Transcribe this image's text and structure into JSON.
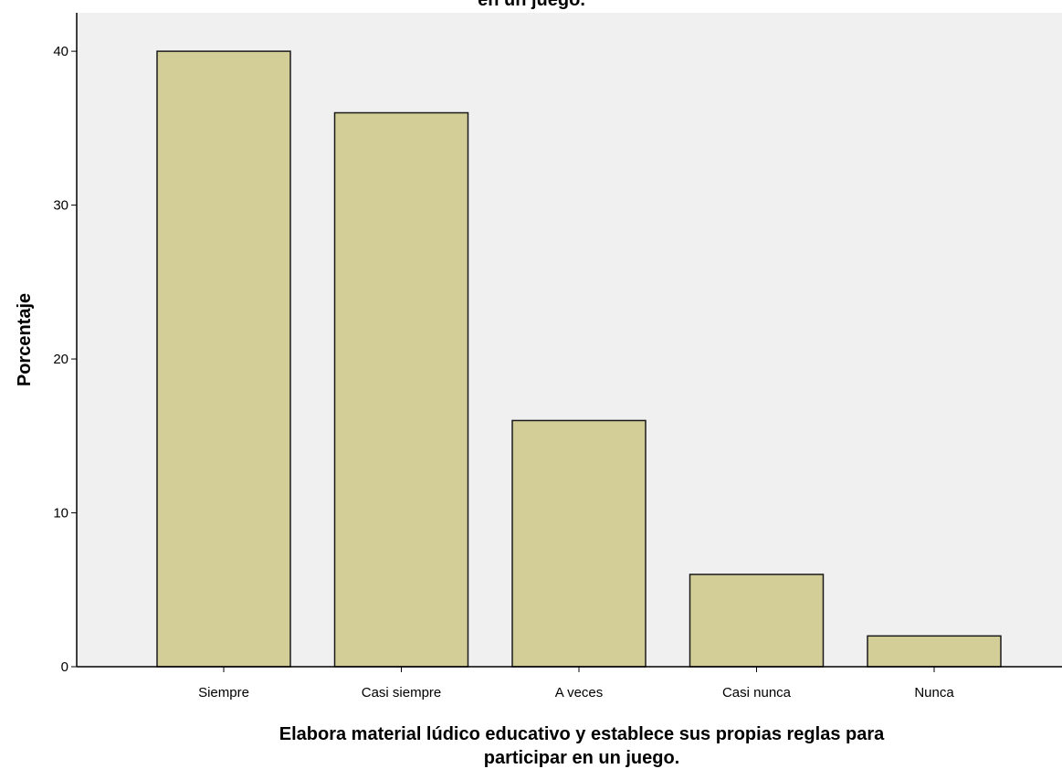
{
  "chart_data": {
    "type": "bar",
    "title": "en un juego.",
    "xlabel_lines": [
      "Elabora material lúdico educativo y establece sus propias reglas para",
      "participar en un juego."
    ],
    "ylabel": "Porcentaje",
    "categories": [
      "Siempre",
      "Casi siempre",
      "A veces",
      "Casi nunca",
      "Nunca"
    ],
    "values": [
      40,
      36,
      16,
      6,
      2
    ],
    "ylim": [
      0,
      42.5
    ],
    "yticks": [
      0,
      10,
      20,
      30,
      40
    ],
    "grid": false,
    "colors": {
      "bar_fill": "#d3ce97",
      "bar_stroke": "#1a1a1a",
      "plot_background": "#f0f0f0",
      "axis": "#000000"
    }
  }
}
